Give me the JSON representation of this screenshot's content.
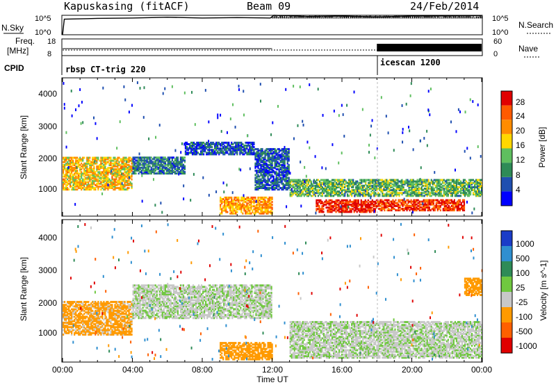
{
  "header": {
    "station": "Kapuskasing (fitACF)",
    "beam": "Beam 09",
    "date": "24/Feb/2014"
  },
  "top_panels": {
    "nsky_label": "N.Sky",
    "nsky_ticks": [
      "10^5",
      "10^0"
    ],
    "nsearch_label": "N.Search",
    "nsearch_ticks": [
      "10^5",
      "10^0"
    ],
    "freq_label_line1": "Freq.",
    "freq_label_line2": "[MHz]",
    "freq_ticks": [
      "18",
      "8"
    ],
    "nave_label": "Nave",
    "nave_ticks": [
      "60",
      "0"
    ],
    "cpid_label": "CPID",
    "cpid_segments": [
      {
        "name": "rbsp CT-trig 220",
        "start": 0
      },
      {
        "name": "icescan 1200",
        "start": 18
      }
    ]
  },
  "power_panel": {
    "ylabel": "Slant Range [km]",
    "yticks": [
      "4000",
      "3000",
      "2000",
      "1000"
    ],
    "colorbar_label": "Power [dB]",
    "colorbar_ticks": [
      "28",
      "24",
      "20",
      "16",
      "12",
      "8",
      "4"
    ],
    "colors": [
      "#0000ff",
      "#1f4fb0",
      "#2e8b57",
      "#5fbf5f",
      "#ffd700",
      "#ff8c00",
      "#ff5a00",
      "#e00000"
    ]
  },
  "velocity_panel": {
    "ylabel": "Slant Range [km]",
    "yticks": [
      "4000",
      "3000",
      "2000",
      "1000"
    ],
    "colorbar_label": "Velocity [m s^-1]",
    "colorbar_ticks": [
      "1000",
      "500",
      "100",
      "25",
      "-25",
      "-100",
      "-500",
      "-1000"
    ],
    "colors": [
      "#1a3cc8",
      "#2f8fd0",
      "#2e8b57",
      "#70c840",
      "#c8c8c8",
      "#ff9a00",
      "#ff6000",
      "#e00000"
    ]
  },
  "xaxis": {
    "label": "Time UT",
    "ticks": [
      "00:00",
      "04:00",
      "08:00",
      "12:00",
      "16:00",
      "20:00",
      "00:00"
    ]
  },
  "chart_data": [
    {
      "type": "line",
      "title": "N.Sky / N.Search",
      "x_units": "hours UT",
      "ylim": [
        "10^0",
        "10^5"
      ],
      "series": [
        {
          "name": "N.Sky",
          "x": [
            0,
            0.1,
            2,
            4,
            6,
            8,
            10,
            11.9,
            12.1,
            14,
            16,
            18,
            20,
            22,
            24
          ],
          "values": [
            0,
            4,
            4.2,
            4.3,
            4.5,
            4.3,
            4.4,
            4.3,
            5,
            4.7,
            4.8,
            4.6,
            4.8,
            4.8,
            4.9
          ]
        }
      ]
    },
    {
      "type": "line",
      "title": "Freq. / Nave",
      "x_units": "hours UT",
      "series": [
        {
          "name": "Freq. (MHz)",
          "x": [
            0,
            12,
            24
          ],
          "values": [
            10.5,
            10.8,
            10.8
          ]
        },
        {
          "name": "Nave",
          "x": [
            0,
            18,
            18.01,
            24
          ],
          "values": [
            15,
            15,
            40,
            40
          ]
        }
      ]
    },
    {
      "type": "heatmap",
      "title": "Power [dB]",
      "xlabel": "Time UT",
      "ylabel": "Slant Range [km]",
      "xlim": [
        0,
        24
      ],
      "ylim": [
        180,
        4500
      ],
      "zlim": [
        0,
        30
      ],
      "regions": [
        {
          "t0": 0,
          "t1": 4,
          "r0": 1000,
          "r1": 2000,
          "level": 18
        },
        {
          "t0": 4,
          "t1": 7,
          "r0": 1500,
          "r1": 2000,
          "level": 8
        },
        {
          "t0": 7,
          "t1": 11,
          "r0": 2100,
          "r1": 2500,
          "level": 6
        },
        {
          "t0": 9,
          "t1": 12,
          "r0": 250,
          "r1": 750,
          "level": 20
        },
        {
          "t0": 11,
          "t1": 13,
          "r0": 1000,
          "r1": 2300,
          "level": 6
        },
        {
          "t0": 14.5,
          "t1": 18,
          "r0": 300,
          "r1": 700,
          "level": 28
        },
        {
          "t0": 18,
          "t1": 23,
          "r0": 350,
          "r1": 700,
          "level": 26
        },
        {
          "t0": 13,
          "t1": 24,
          "r0": 800,
          "r1": 1300,
          "level": 12
        }
      ]
    },
    {
      "type": "heatmap",
      "title": "Velocity [m s^-1]",
      "xlabel": "Time UT",
      "ylabel": "Slant Range [km]",
      "xlim": [
        0,
        24
      ],
      "ylim": [
        180,
        4500
      ],
      "zlim": [
        -1000,
        1000
      ],
      "regions": [
        {
          "t0": 0,
          "t1": 4,
          "r0": 1000,
          "r1": 2000,
          "level": -100
        },
        {
          "t0": 4,
          "t1": 12,
          "r0": 1500,
          "r1": 2500,
          "level": 0
        },
        {
          "t0": 9,
          "t1": 12,
          "r0": 250,
          "r1": 750,
          "level": -150
        },
        {
          "t0": 13,
          "t1": 24,
          "r0": 300,
          "r1": 1400,
          "level": 0
        },
        {
          "t0": 23,
          "t1": 24,
          "r0": 2200,
          "r1": 2700,
          "level": -150
        }
      ]
    }
  ]
}
